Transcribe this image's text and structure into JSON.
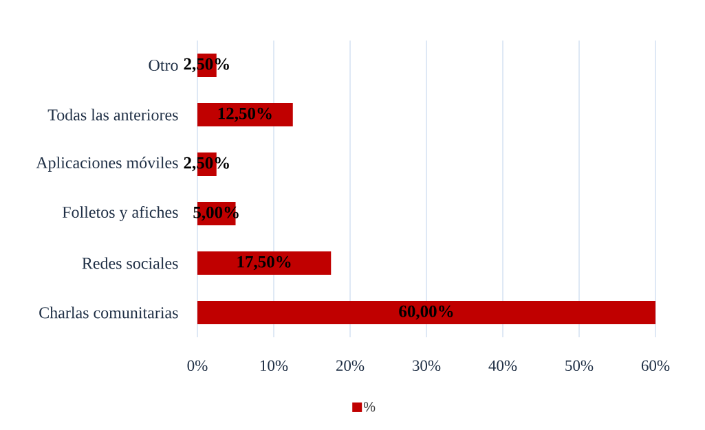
{
  "chart_data": {
    "type": "bar",
    "orientation": "horizontal",
    "categories": [
      "Otro",
      "Todas las anteriores",
      "Aplicaciones móviles",
      "Folletos y afiches",
      "Redes sociales",
      "Charlas comunitarias"
    ],
    "series": [
      {
        "name": "%",
        "color": "#c00000",
        "values": [
          2.5,
          12.5,
          2.5,
          5,
          17.5,
          60
        ],
        "value_labels": [
          "2,50%",
          "12,50%",
          "2,50%",
          "5,00%",
          "17,50%",
          "60,00%"
        ]
      }
    ],
    "xlim": [
      0,
      60
    ],
    "xticks": [
      {
        "value": 0,
        "label": "0%"
      },
      {
        "value": 10,
        "label": "10%"
      },
      {
        "value": 20,
        "label": "20%"
      },
      {
        "value": 30,
        "label": "30%"
      },
      {
        "value": 40,
        "label": "40%"
      },
      {
        "value": 50,
        "label": "50%"
      },
      {
        "value": 60,
        "label": "60%"
      }
    ],
    "grid": "x",
    "legend": "bottom"
  }
}
